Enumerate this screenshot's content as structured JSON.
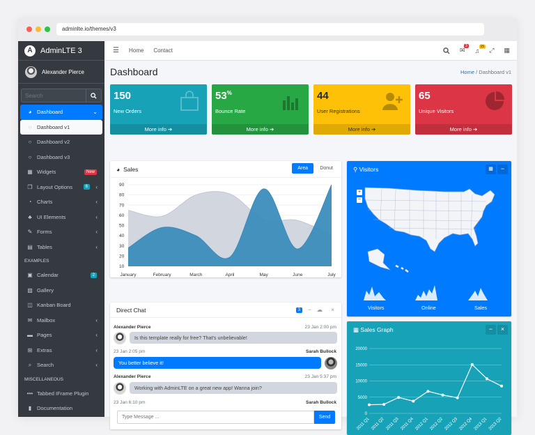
{
  "browser": {
    "url": "adminlte.io/themes/v3"
  },
  "brand": {
    "name": "AdminLTE 3"
  },
  "user": {
    "name": "Alexander Pierce"
  },
  "sidebar": {
    "search_placeholder": "Search",
    "items": [
      {
        "label": "Dashboard"
      },
      {
        "label": "Dashboard v1"
      },
      {
        "label": "Dashboard v2"
      },
      {
        "label": "Dashboard v3"
      },
      {
        "label": "Widgets",
        "badge": "New"
      },
      {
        "label": "Layout Options",
        "badge": "6"
      },
      {
        "label": "Charts"
      },
      {
        "label": "UI Elements"
      },
      {
        "label": "Forms"
      },
      {
        "label": "Tables"
      }
    ],
    "examples_header": "EXAMPLES",
    "examples": [
      {
        "label": "Calendar",
        "badge": "2"
      },
      {
        "label": "Gallery"
      },
      {
        "label": "Kanban Board"
      },
      {
        "label": "Mailbox"
      },
      {
        "label": "Pages"
      },
      {
        "label": "Extras"
      },
      {
        "label": "Search"
      }
    ],
    "misc_header": "MISCELLANEOUS",
    "misc": [
      {
        "label": "Tabbed IFrame Plugin"
      },
      {
        "label": "Documentation"
      }
    ]
  },
  "topnav": {
    "home": "Home",
    "contact": "Contact",
    "msg_badge": "3",
    "notif_badge": "15"
  },
  "page": {
    "title": "Dashboard",
    "crumb_home": "Home",
    "crumb_current": "Dashboard v1"
  },
  "boxes": [
    {
      "value": "150",
      "suffix": "",
      "label": "New Orders",
      "more": "More info",
      "color": "#17a2b8"
    },
    {
      "value": "53",
      "suffix": "%",
      "label": "Bounce Rate",
      "more": "More info",
      "color": "#28a745"
    },
    {
      "value": "44",
      "suffix": "",
      "label": "User Registrations",
      "more": "More info",
      "color": "#ffc107"
    },
    {
      "value": "65",
      "suffix": "",
      "label": "Unique Visitors",
      "more": "More info",
      "color": "#dc3545"
    }
  ],
  "sales": {
    "title": "Sales",
    "tab_area": "Area",
    "tab_donut": "Donut"
  },
  "chart_data": [
    {
      "type": "area",
      "title": "Sales",
      "categories": [
        "January",
        "February",
        "March",
        "April",
        "May",
        "June",
        "July"
      ],
      "series": [
        {
          "values": [
            28,
            48,
            40,
            19,
            86,
            27,
            90
          ],
          "color": "#3c8dbc"
        },
        {
          "values": [
            65,
            59,
            80,
            81,
            56,
            55,
            40
          ],
          "color": "#d2d6de"
        }
      ],
      "yticks": [
        10,
        20,
        30,
        40,
        50,
        60,
        70,
        80,
        90
      ],
      "ylim": [
        10,
        90
      ]
    },
    {
      "type": "line",
      "title": "Sales Graph",
      "categories": [
        "2011 Q1",
        "2011 Q2",
        "2011 Q3",
        "2011 Q4",
        "2012 Q1",
        "2012 Q2",
        "2012 Q3",
        "2012 Q4",
        "2013 Q1",
        "2013 Q2"
      ],
      "values": [
        2666,
        2778,
        4912,
        3767,
        6810,
        5670,
        4820,
        15073,
        10687,
        8432
      ],
      "yticks": [
        0,
        5000,
        10000,
        15000,
        20000
      ],
      "ylim": [
        0,
        20000
      ]
    }
  ],
  "chat": {
    "title": "Direct Chat",
    "badge": "3",
    "messages": [
      {
        "name": "Alexander Pierce",
        "time": "23 Jan 2:00 pm",
        "text": "Is this template really for free? That's unbelievable!"
      },
      {
        "name": "Sarah Bullock",
        "time": "23 Jan 2:05 pm",
        "text": "You better believe it!"
      },
      {
        "name": "Alexander Pierce",
        "time": "23 Jan 5:37 pm",
        "text": "Working with AdminLTE on a great new app! Wanna join?"
      },
      {
        "name": "Sarah Bullock",
        "time": "23 Jan 6:10 pm",
        "text": ""
      }
    ],
    "input_placeholder": "Type Message ...",
    "send": "Send"
  },
  "visitors": {
    "title": "Visitors",
    "stat1": "Visitors",
    "stat2": "Online",
    "stat3": "Sales",
    "color": "#007bff"
  },
  "sales_graph": {
    "title": "Sales Graph",
    "color": "#17a2b8"
  }
}
